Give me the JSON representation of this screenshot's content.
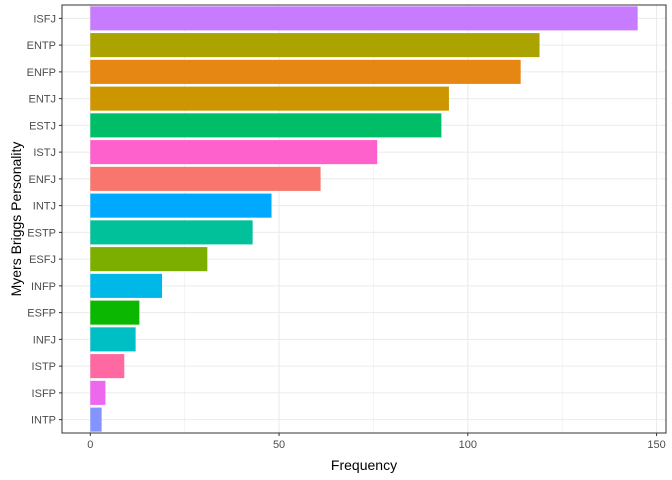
{
  "chart_data": {
    "type": "bar",
    "orientation": "horizontal",
    "xlabel": "Frequency",
    "ylabel": "Myers Briggs Personality",
    "xlim": [
      -7.5,
      152.5
    ],
    "x_ticks": [
      0,
      50,
      100,
      150
    ],
    "grid": true,
    "legend": "none",
    "categories": [
      "ISFJ",
      "ENTP",
      "ENFP",
      "ENTJ",
      "ESTJ",
      "ISTJ",
      "ENFJ",
      "INTJ",
      "ESTP",
      "ESFJ",
      "INFP",
      "ESFP",
      "INFJ",
      "ISTP",
      "ISFP",
      "INTP"
    ],
    "values": [
      145,
      119,
      114,
      95,
      93,
      76,
      61,
      48,
      43,
      31,
      19,
      13,
      12,
      9,
      4,
      3
    ],
    "colors": [
      "#C77CFF",
      "#ABA300",
      "#E68613",
      "#CD9600",
      "#00BE67",
      "#FF61CC",
      "#F8766D",
      "#00A9FF",
      "#00C19A",
      "#7CAE00",
      "#00B8E7",
      "#0CB702",
      "#00BFC4",
      "#FF68A1",
      "#ED68ED",
      "#8494FF"
    ]
  }
}
